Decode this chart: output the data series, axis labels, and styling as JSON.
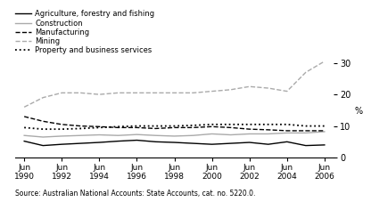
{
  "title": "",
  "source": "Source: Australian National Accounts: State Accounts, cat. no. 5220.0.",
  "ylabel": "%",
  "ylim": [
    0,
    32
  ],
  "yticks": [
    0,
    10,
    20,
    30
  ],
  "x_years": [
    1990,
    1991,
    1992,
    1993,
    1994,
    1995,
    1996,
    1997,
    1998,
    1999,
    2000,
    2001,
    2002,
    2003,
    2004,
    2005,
    2006
  ],
  "xtick_labels": [
    "Jun\n1990",
    "Jun\n1992",
    "Jun\n1994",
    "Jun\n1996",
    "Jun\n1998",
    "Jun\n2000",
    "Jun\n2002",
    "Jun\n2004",
    "Jun\n2006"
  ],
  "xtick_positions": [
    1990,
    1992,
    1994,
    1996,
    1998,
    2000,
    2002,
    2004,
    2006
  ],
  "series": {
    "Agriculture, forestry and fishing": {
      "color": "#000000",
      "linestyle": "solid",
      "linewidth": 1.0,
      "values": [
        5.2,
        3.8,
        4.2,
        4.5,
        4.8,
        5.2,
        5.5,
        5.0,
        4.8,
        4.5,
        4.2,
        4.5,
        4.8,
        4.2,
        5.0,
        3.8,
        4.0
      ]
    },
    "Construction": {
      "color": "#aaaaaa",
      "linestyle": "solid",
      "linewidth": 1.0,
      "values": [
        7.0,
        6.5,
        6.8,
        7.0,
        7.2,
        7.0,
        7.3,
        7.0,
        6.8,
        7.0,
        7.5,
        7.2,
        7.5,
        7.5,
        7.8,
        7.8,
        8.2
      ]
    },
    "Manufacturing": {
      "color": "#000000",
      "linestyle": "dashed",
      "linewidth": 1.0,
      "values": [
        13.0,
        11.5,
        10.5,
        10.0,
        9.8,
        9.5,
        9.5,
        9.2,
        9.5,
        9.5,
        9.8,
        9.5,
        9.0,
        8.8,
        8.5,
        8.5,
        8.5
      ]
    },
    "Mining": {
      "color": "#aaaaaa",
      "linestyle": "dashed",
      "linewidth": 1.0,
      "values": [
        16.0,
        19.0,
        20.5,
        20.5,
        20.0,
        20.5,
        20.5,
        20.5,
        20.5,
        20.5,
        21.0,
        21.5,
        22.5,
        22.0,
        21.0,
        27.0,
        30.5
      ]
    },
    "Property and business services": {
      "color": "#000000",
      "linestyle": "dotted",
      "linewidth": 1.3,
      "values": [
        9.5,
        9.0,
        9.0,
        9.2,
        9.5,
        9.8,
        10.0,
        10.0,
        10.0,
        10.2,
        10.5,
        10.5,
        10.5,
        10.5,
        10.5,
        10.0,
        10.0
      ]
    }
  },
  "legend_order": [
    "Agriculture, forestry and fishing",
    "Construction",
    "Manufacturing",
    "Mining",
    "Property and business services"
  ],
  "background_color": "#ffffff"
}
